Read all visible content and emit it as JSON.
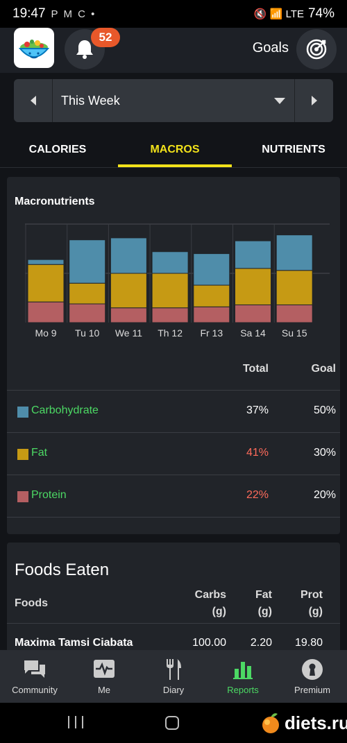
{
  "status_bar": {
    "time": "19:47",
    "left_icons": "P M C •",
    "right_icons": "🔇 📶 LTE",
    "battery": "74%"
  },
  "header": {
    "notification_count": "52",
    "goals_label": "Goals"
  },
  "period": {
    "label": "This Week"
  },
  "tabs": [
    {
      "label": "CALORIES",
      "active": false
    },
    {
      "label": "MACROS",
      "active": true
    },
    {
      "label": "NUTRIENTS",
      "active": false
    }
  ],
  "colors": {
    "carb": "#4f8daa",
    "fat": "#c69a14",
    "protein": "#b45f62",
    "accent": "#f2e21a",
    "green": "#4cd964",
    "over": "#ff6b5b"
  },
  "macros_card": {
    "title": "Macronutrients",
    "col_total": "Total",
    "col_goal": "Goal",
    "rows": [
      {
        "name": "Carbohydrate",
        "total": "37%",
        "goal": "50%",
        "over": false
      },
      {
        "name": "Fat",
        "total": "41%",
        "goal": "30%",
        "over": true
      },
      {
        "name": "Protein",
        "total": "22%",
        "goal": "20%",
        "over": true
      }
    ]
  },
  "chart_data": {
    "type": "bar",
    "stacked": true,
    "title": "Macronutrients",
    "categories": [
      "Mo 9",
      "Tu 10",
      "We 11",
      "Th 12",
      "Fr 13",
      "Sa 14",
      "Su 15"
    ],
    "series": [
      {
        "name": "Protein",
        "values": [
          21,
          19,
          15,
          15,
          16,
          18,
          18
        ]
      },
      {
        "name": "Fat",
        "values": [
          38,
          21,
          35,
          35,
          22,
          37,
          35
        ]
      },
      {
        "name": "Carbohydrate",
        "values": [
          5,
          44,
          36,
          22,
          32,
          28,
          36
        ]
      }
    ],
    "ylim": [
      0,
      100
    ],
    "grid": true,
    "legend": "none"
  },
  "foods_card": {
    "title": "Foods Eaten",
    "col_foods": "Foods",
    "col_carbs": "Carbs",
    "col_carbs_unit": "(g)",
    "col_fat": "Fat",
    "col_fat_unit": "(g)",
    "col_prot": "Prot",
    "col_prot_unit": "(g)",
    "first_item": {
      "name": "Maxima Tamsi Ciabata",
      "carbs": "100.00",
      "fat": "2.20",
      "prot": "19.80"
    }
  },
  "bottom_nav": [
    {
      "label": "Community",
      "icon": "chat-icon",
      "active": false
    },
    {
      "label": "Me",
      "icon": "heart-monitor-icon",
      "active": false
    },
    {
      "label": "Diary",
      "icon": "fork-knife-icon",
      "active": false
    },
    {
      "label": "Reports",
      "icon": "bar-chart-icon",
      "active": true
    },
    {
      "label": "Premium",
      "icon": "keyhole-icon",
      "active": false
    }
  ],
  "watermark": "diets.ru"
}
